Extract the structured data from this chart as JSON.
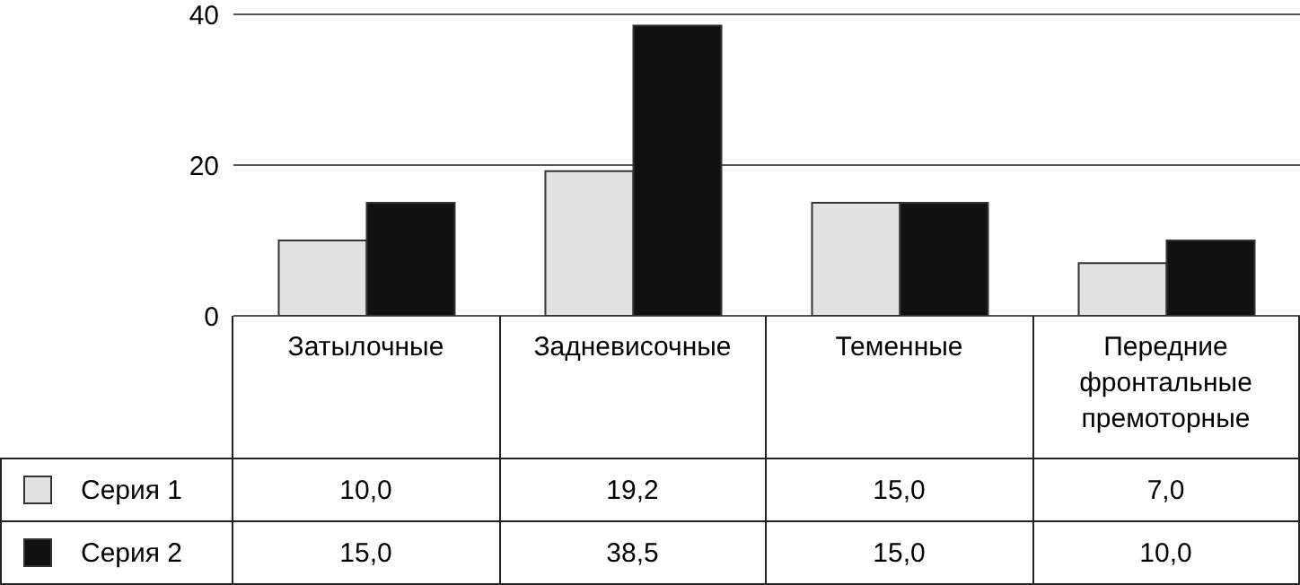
{
  "chart_data": {
    "type": "bar",
    "categories": [
      "Затылочные",
      "Задневисочные",
      "Теменные",
      "Передние фронтальные премоторные"
    ],
    "series": [
      {
        "name": "Серия 1",
        "color": "#e2e2e2",
        "values": [
          10.0,
          19.2,
          15.0,
          7.0
        ],
        "value_labels": [
          "10,0",
          "19,2",
          "15,0",
          "7,0"
        ]
      },
      {
        "name": "Серия 2",
        "color": "#111111",
        "values": [
          15.0,
          38.5,
          15.0,
          10.0
        ],
        "value_labels": [
          "15,0",
          "38,5",
          "15,0",
          "10,0"
        ]
      }
    ],
    "ylim": [
      0,
      40
    ],
    "yticks": [
      0,
      20,
      40
    ],
    "grid": "y",
    "legend": "bottom left"
  }
}
